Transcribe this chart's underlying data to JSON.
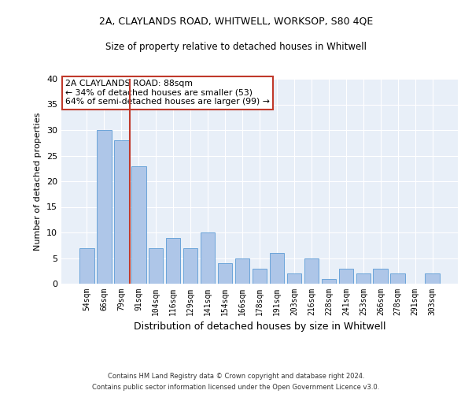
{
  "title1": "2A, CLAYLANDS ROAD, WHITWELL, WORKSOP, S80 4QE",
  "title2": "Size of property relative to detached houses in Whitwell",
  "xlabel": "Distribution of detached houses by size in Whitwell",
  "ylabel": "Number of detached properties",
  "categories": [
    "54sqm",
    "66sqm",
    "79sqm",
    "91sqm",
    "104sqm",
    "116sqm",
    "129sqm",
    "141sqm",
    "154sqm",
    "166sqm",
    "178sqm",
    "191sqm",
    "203sqm",
    "216sqm",
    "228sqm",
    "241sqm",
    "253sqm",
    "266sqm",
    "278sqm",
    "291sqm",
    "303sqm"
  ],
  "values": [
    7,
    30,
    28,
    23,
    7,
    9,
    7,
    10,
    4,
    5,
    3,
    6,
    2,
    5,
    1,
    3,
    2,
    3,
    2,
    0,
    2
  ],
  "bar_color": "#aec6e8",
  "bar_edge_color": "#5b9bd5",
  "vline_x": 2.5,
  "vline_color": "#c0392b",
  "annotation_box_text": "2A CLAYLANDS ROAD: 88sqm\n← 34% of detached houses are smaller (53)\n64% of semi-detached houses are larger (99) →",
  "ylim": [
    0,
    40
  ],
  "yticks": [
    0,
    5,
    10,
    15,
    20,
    25,
    30,
    35,
    40
  ],
  "bg_color": "#e8eff8",
  "grid_color": "#ffffff",
  "footer_line1": "Contains HM Land Registry data © Crown copyright and database right 2024.",
  "footer_line2": "Contains public sector information licensed under the Open Government Licence v3.0."
}
